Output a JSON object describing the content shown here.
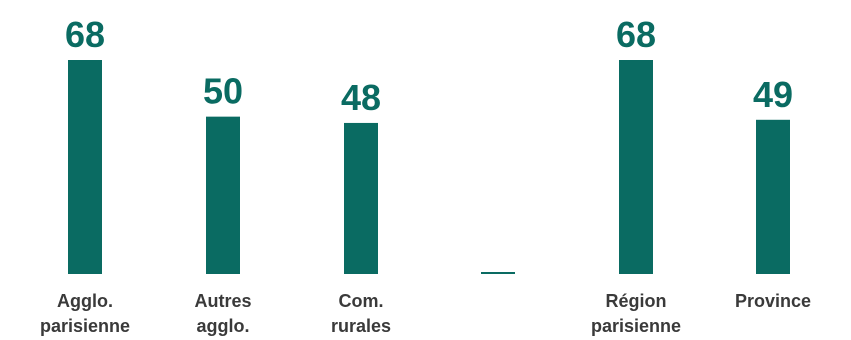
{
  "chart_data": {
    "type": "bar",
    "categories": [
      [
        "Agglo.",
        "parisienne"
      ],
      [
        "Autres",
        "agglo."
      ],
      [
        "Com.",
        "rurales"
      ],
      [],
      [
        "Région",
        "parisienne"
      ],
      [
        "Province"
      ]
    ],
    "values": [
      68,
      50,
      48,
      0,
      68,
      49
    ],
    "data_labels": [
      "68",
      "50",
      "48",
      "",
      "68",
      "49"
    ],
    "title": "",
    "xlabel": "",
    "ylabel": "",
    "ylim": [
      0,
      68
    ],
    "grid": false,
    "legend": "none",
    "colors": {
      "bar": "#0a6b62",
      "value_label": "#0a6b62",
      "category_label": "#3a3a3a"
    }
  }
}
